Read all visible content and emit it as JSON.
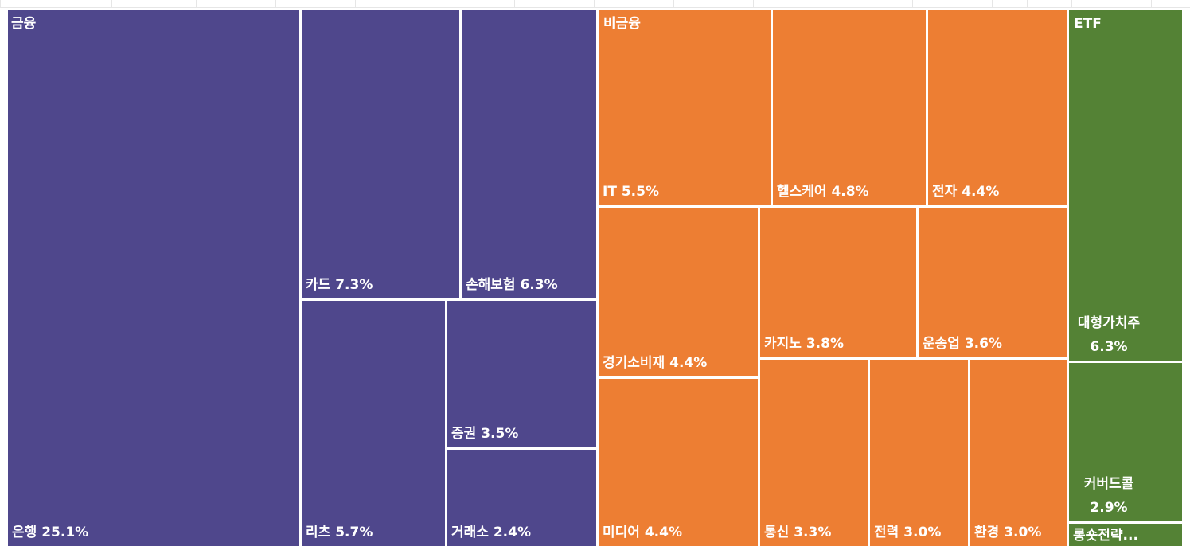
{
  "chart_data": {
    "type": "treemap",
    "groups": [
      {
        "name": "금융",
        "color": "#4f478c",
        "items": [
          {
            "name": "은행",
            "value": 25.1,
            "label": "은행 25.1%"
          },
          {
            "name": "카드",
            "value": 7.3,
            "label": "카드 7.3%"
          },
          {
            "name": "손해보험",
            "value": 6.3,
            "label": "손해보험 6.3%"
          },
          {
            "name": "리츠",
            "value": 5.7,
            "label": "리츠 5.7%"
          },
          {
            "name": "증권",
            "value": 3.5,
            "label": "증권 3.5%"
          },
          {
            "name": "거래소",
            "value": 2.4,
            "label": "거래소 2.4%"
          }
        ]
      },
      {
        "name": "비금융",
        "color": "#ed7e33",
        "items": [
          {
            "name": "IT",
            "value": 5.5,
            "label": "IT 5.5%"
          },
          {
            "name": "헬스케어",
            "value": 4.8,
            "label": "헬스케어 4.8%"
          },
          {
            "name": "전자",
            "value": 4.4,
            "label": "전자 4.4%"
          },
          {
            "name": "경기소비재",
            "value": 4.4,
            "label": "경기소비재 4.4%"
          },
          {
            "name": "카지노",
            "value": 3.8,
            "label": "카지노 3.8%"
          },
          {
            "name": "운송업",
            "value": 3.6,
            "label": "운송업 3.6%"
          },
          {
            "name": "미디어",
            "value": 4.4,
            "label": "미디어 4.4%"
          },
          {
            "name": "통신",
            "value": 3.3,
            "label": "통신 3.3%"
          },
          {
            "name": "전력",
            "value": 3.0,
            "label": "전력 3.0%"
          },
          {
            "name": "환경",
            "value": 3.0,
            "label": "환경 3.0%"
          }
        ]
      },
      {
        "name": "ETF",
        "color": "#548235",
        "items": [
          {
            "name": "대형가치주",
            "value": 6.3,
            "label": "대형가치주 6.3%"
          },
          {
            "name": "커버드콜",
            "value": 2.9,
            "label": "커버드콜 2.9%"
          },
          {
            "name": "롱숏전략...",
            "value": null,
            "label": "롱숏전략..."
          }
        ]
      }
    ]
  }
}
